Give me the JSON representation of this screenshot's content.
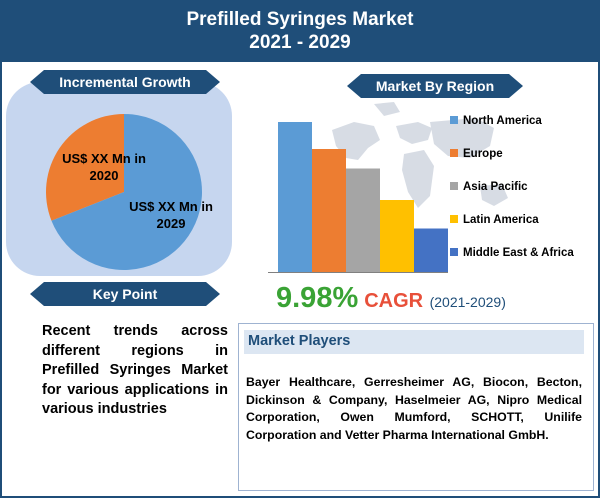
{
  "header": {
    "title_line1": "Prefilled Syringes Market",
    "title_line2": "2021 - 2029"
  },
  "incremental_growth": {
    "label": "Incremental Growth",
    "pie_2020_label": "US$ XX Mn in 2020",
    "pie_2029_label": "US$ XX Mn in 2029"
  },
  "key_point": {
    "label": "Key Point",
    "text": "Recent trends across different regions in Prefilled Syringes Market for various applications in various industries"
  },
  "market_by_region": {
    "label": "Market By Region"
  },
  "cagr": {
    "value": "9.98%",
    "label": "CAGR",
    "period": "(2021-2029)"
  },
  "market_players": {
    "title": "Market Players",
    "text": "Bayer Healthcare, Gerresheimer AG, Biocon, Becton, Dickinson & Company, Haselmeier AG, Nipro Medical Corporation, Owen Mumford, SCHOTT, Unilife Corporation and Vetter Pharma International GmbH."
  },
  "colors": {
    "header_bg": "#1f4e79",
    "panel_bg": "#c6d6ef",
    "cagr_value": "#3aa335",
    "cagr_label": "#e8503a"
  },
  "chart_data": [
    {
      "type": "pie",
      "labels": [
        "US$ XX Mn in 2020",
        "US$ XX Mn in 2029"
      ],
      "values": [
        31,
        69
      ],
      "colors": [
        "#ed7d31",
        "#5b9bd5"
      ]
    },
    {
      "type": "bar",
      "categories": [
        "North America",
        "Europe",
        "Asia Pacific",
        "Latin America",
        "Middle East & Africa"
      ],
      "values": [
        100,
        82,
        69,
        48,
        29
      ],
      "colors": [
        "#5b9bd5",
        "#ed7d31",
        "#a5a5a5",
        "#ffc000",
        "#4472c4"
      ],
      "legend_position": "right"
    }
  ]
}
